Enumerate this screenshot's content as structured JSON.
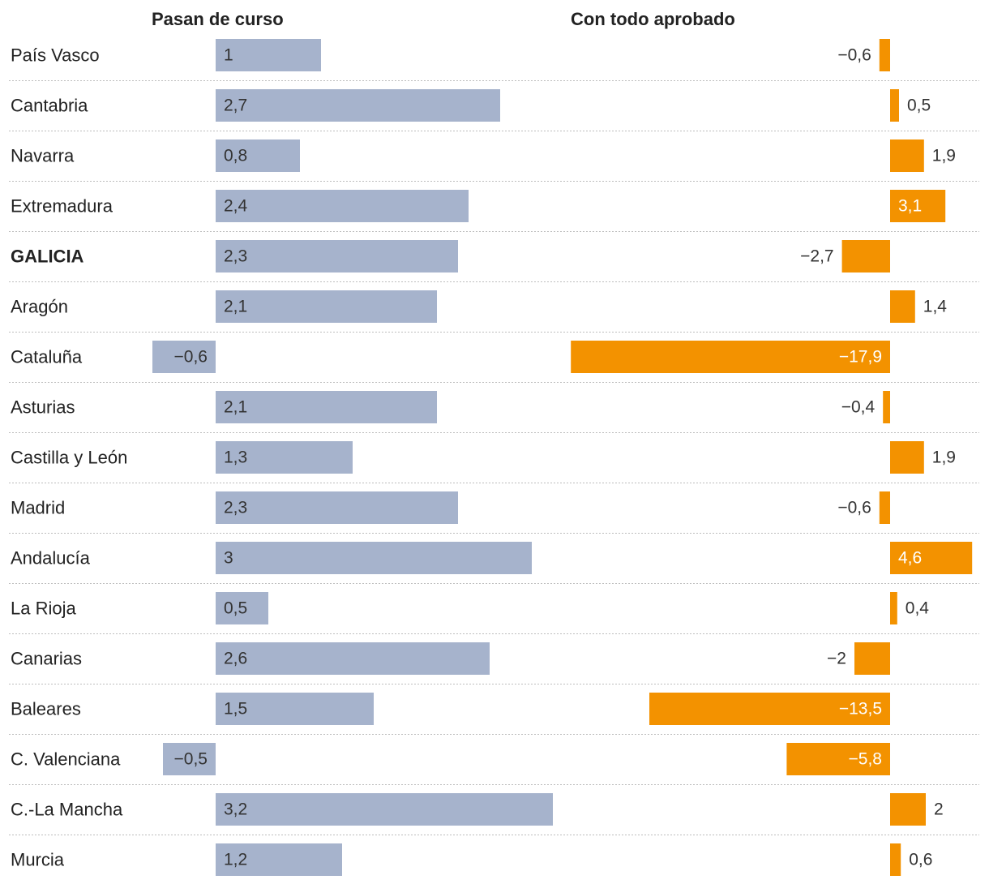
{
  "chart_data": {
    "type": "bar",
    "categories": [
      "País Vasco",
      "Cantabria",
      "Navarra",
      "Extremadura",
      "GALICIA",
      "Aragón",
      "Cataluña",
      "Asturias",
      "Castilla y León",
      "Madrid",
      "Andalucía",
      "La Rioja",
      "Canarias",
      "Baleares",
      "C. Valenciana",
      "C.-La Mancha",
      "Murcia"
    ],
    "highlight": "GALICIA",
    "series": [
      {
        "name": "Pasan de curso",
        "color": "#a6b3cc",
        "values": [
          1,
          2.7,
          0.8,
          2.4,
          2.3,
          2.1,
          -0.6,
          2.1,
          1.3,
          2.3,
          3,
          0.5,
          2.6,
          1.5,
          -0.5,
          3.2,
          1.2
        ],
        "labels": [
          "1",
          "2,7",
          "0,8",
          "2,4",
          "2,3",
          "2,1",
          "−0,6",
          "2,1",
          "1,3",
          "2,3",
          "3",
          "0,5",
          "2,6",
          "1,5",
          "−0,5",
          "3,2",
          "1,2"
        ]
      },
      {
        "name": "Con todo aprobado",
        "color": "#f39200",
        "values": [
          -0.6,
          0.5,
          1.9,
          3.1,
          -2.7,
          1.4,
          -17.9,
          -0.4,
          1.9,
          -0.6,
          4.6,
          0.4,
          -2,
          -13.5,
          -5.8,
          2,
          0.6
        ],
        "labels": [
          "−0,6",
          "0,5",
          "1,9",
          "3,1",
          "−2,7",
          "1,4",
          "−17,9",
          "−0,4",
          "1,9",
          "−0,6",
          "4,6",
          "0,4",
          "−2",
          "−13,5",
          "−5,8",
          "2",
          "0,6"
        ]
      }
    ]
  }
}
